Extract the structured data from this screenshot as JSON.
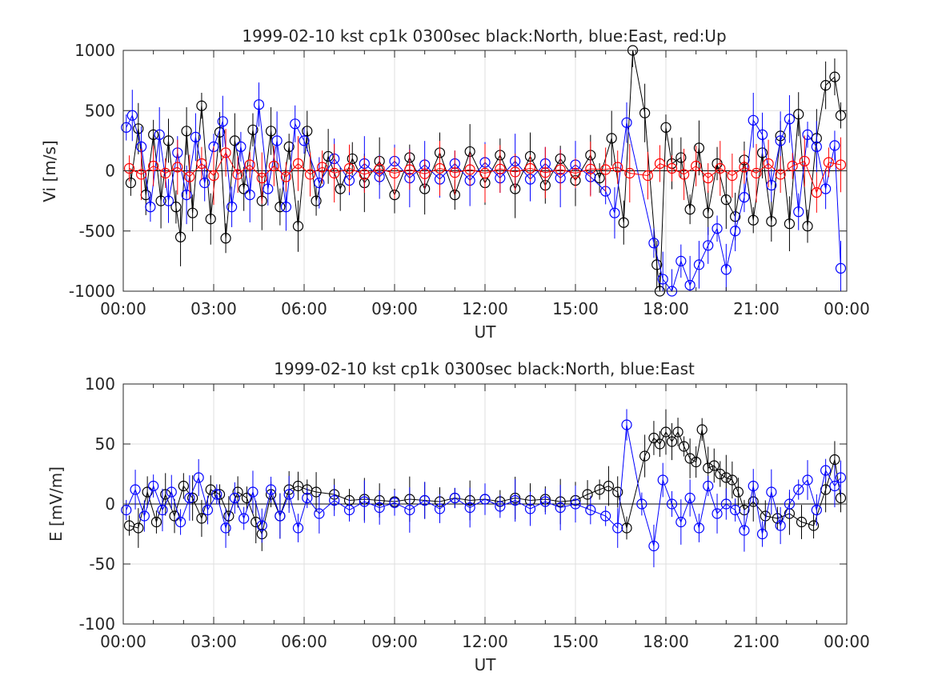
{
  "chart_data": [
    {
      "type": "scatter",
      "title": "1999-02-10 kst cp1k 0300sec black:North, blue:East, red:Up",
      "xlabel": "UT",
      "ylabel": "Vi [m/s]",
      "ylim": [
        -1000,
        1000
      ],
      "xlim_hours": [
        0,
        24
      ],
      "x_ticks": [
        "00:00",
        "03:00",
        "06:00",
        "09:00",
        "12:00",
        "15:00",
        "18:00",
        "21:00",
        "00:00"
      ],
      "y_ticks": [
        "-1000",
        "-500",
        "0",
        "500",
        "1000"
      ],
      "grid": true,
      "marker": "circle with error bar, connected by line",
      "series": [
        {
          "color": "#000000",
          "x_hours": [
            0.25,
            0.5,
            0.75,
            1.0,
            1.25,
            1.5,
            1.75,
            1.9,
            2.1,
            2.3,
            2.6,
            2.9,
            3.2,
            3.4,
            3.7,
            4.0,
            4.3,
            4.6,
            4.9,
            5.2,
            5.5,
            5.8,
            6.1,
            6.4,
            6.8,
            7.2,
            7.6,
            8.0,
            8.5,
            9.0,
            9.5,
            10.0,
            10.5,
            11.0,
            11.5,
            12.0,
            12.5,
            13.0,
            13.5,
            14.0,
            14.5,
            15.0,
            15.5,
            15.8,
            16.2,
            16.6,
            16.9,
            17.3,
            17.7,
            17.8,
            18.0,
            18.2,
            18.5,
            18.8,
            19.1,
            19.4,
            19.7,
            20.0,
            20.3,
            20.6,
            20.9,
            21.2,
            21.5,
            21.8,
            22.1,
            22.4,
            22.7,
            23.0,
            23.3,
            23.6,
            23.8
          ],
          "values": [
            -100,
            350,
            -200,
            300,
            -250,
            250,
            -300,
            -550,
            330,
            -350,
            540,
            -400,
            320,
            -560,
            250,
            -150,
            340,
            -250,
            330,
            -300,
            200,
            -460,
            330,
            -250,
            120,
            -150,
            100,
            -100,
            80,
            -200,
            110,
            -150,
            150,
            -200,
            160,
            -100,
            130,
            -150,
            120,
            -120,
            100,
            -80,
            130,
            -60,
            270,
            -430,
            1000,
            480,
            -780,
            -1000,
            360,
            60,
            110,
            -320,
            190,
            -350,
            60,
            -240,
            -380,
            90,
            -410,
            150,
            -420,
            290,
            -440,
            470,
            -460,
            270,
            710,
            780,
            460
          ]
        },
        {
          "color": "#0000ff",
          "x_hours": [
            0.1,
            0.3,
            0.6,
            0.9,
            1.2,
            1.5,
            1.8,
            2.1,
            2.4,
            2.7,
            3.0,
            3.3,
            3.6,
            3.9,
            4.2,
            4.5,
            4.8,
            5.1,
            5.4,
            5.7,
            6.0,
            6.5,
            7.0,
            7.5,
            8.0,
            8.5,
            9.0,
            9.5,
            10.0,
            10.5,
            11.0,
            11.5,
            12.0,
            12.5,
            13.0,
            13.5,
            14.0,
            14.5,
            15.0,
            15.5,
            16.0,
            16.3,
            16.7,
            17.6,
            17.9,
            18.2,
            18.5,
            18.8,
            19.1,
            19.4,
            19.7,
            20.0,
            20.3,
            20.6,
            20.9,
            21.2,
            21.5,
            21.8,
            22.1,
            22.4,
            22.7,
            23.0,
            23.3,
            23.6,
            23.8
          ],
          "values": [
            360,
            460,
            200,
            -300,
            300,
            -250,
            150,
            -200,
            280,
            -100,
            200,
            410,
            -300,
            200,
            -200,
            550,
            -150,
            250,
            -300,
            390,
            250,
            -100,
            100,
            -80,
            60,
            -50,
            80,
            -60,
            50,
            -70,
            60,
            -80,
            70,
            -60,
            80,
            -70,
            60,
            -60,
            50,
            -50,
            -170,
            -350,
            400,
            -600,
            -900,
            -1000,
            -750,
            -950,
            -780,
            -620,
            -480,
            -820,
            -500,
            -220,
            420,
            300,
            -120,
            250,
            430,
            -340,
            300,
            200,
            -150,
            210,
            -810
          ]
        },
        {
          "color": "#ff0000",
          "x_hours": [
            0.2,
            0.6,
            1.0,
            1.4,
            1.8,
            2.2,
            2.6,
            3.0,
            3.4,
            3.8,
            4.2,
            4.6,
            5.0,
            5.4,
            5.8,
            6.2,
            6.6,
            7.0,
            7.5,
            8.0,
            8.5,
            9.0,
            9.5,
            10.0,
            10.5,
            11.0,
            11.5,
            12.0,
            12.5,
            13.0,
            13.5,
            14.0,
            14.5,
            15.0,
            15.5,
            16.0,
            16.4,
            16.8,
            17.4,
            17.8,
            18.2,
            18.6,
            19.0,
            19.4,
            19.8,
            20.2,
            20.6,
            21.0,
            21.4,
            21.8,
            22.2,
            22.6,
            23.0,
            23.4,
            23.8
          ],
          "values": [
            20,
            -30,
            40,
            -20,
            30,
            -50,
            60,
            -40,
            150,
            -30,
            50,
            -60,
            40,
            -50,
            60,
            -30,
            30,
            -20,
            20,
            -30,
            15,
            -20,
            10,
            -25,
            20,
            -15,
            10,
            -20,
            15,
            -10,
            20,
            -15,
            10,
            -20,
            15,
            10,
            30,
            -20,
            -40,
            60,
            20,
            -30,
            40,
            -60,
            20,
            -40,
            30,
            -20,
            60,
            -30,
            40,
            80,
            -180,
            70,
            50
          ]
        }
      ]
    },
    {
      "type": "scatter",
      "title": "1999-02-10 kst cp1k 0300sec black:North, blue:East",
      "xlabel": "UT",
      "ylabel": "E [mV/m]",
      "ylim": [
        -100,
        100
      ],
      "xlim_hours": [
        0,
        24
      ],
      "x_ticks": [
        "00:00",
        "03:00",
        "06:00",
        "09:00",
        "12:00",
        "15:00",
        "18:00",
        "21:00",
        "00:00"
      ],
      "y_ticks": [
        "-100",
        "-50",
        "0",
        "50",
        "100"
      ],
      "grid": true,
      "marker": "circle with error bar, connected by line",
      "series": [
        {
          "color": "#000000",
          "x_hours": [
            0.2,
            0.5,
            0.8,
            1.1,
            1.4,
            1.7,
            2.0,
            2.3,
            2.6,
            2.9,
            3.2,
            3.5,
            3.8,
            4.1,
            4.4,
            4.6,
            4.9,
            5.2,
            5.5,
            5.8,
            6.1,
            6.4,
            7.0,
            7.5,
            8.0,
            8.5,
            9.0,
            9.5,
            10.0,
            10.5,
            11.0,
            11.5,
            12.0,
            12.5,
            13.0,
            13.5,
            14.0,
            14.5,
            15.0,
            15.4,
            15.8,
            16.1,
            16.4,
            16.7,
            17.3,
            17.6,
            17.8,
            18.0,
            18.2,
            18.4,
            18.6,
            18.8,
            19.0,
            19.2,
            19.4,
            19.6,
            19.8,
            20.0,
            20.2,
            20.4,
            20.6,
            20.9,
            21.3,
            21.7,
            22.1,
            22.5,
            22.9,
            23.3,
            23.6,
            23.8
          ],
          "values": [
            -18,
            -20,
            10,
            -15,
            8,
            -10,
            15,
            5,
            -12,
            12,
            8,
            -10,
            10,
            5,
            -15,
            -25,
            8,
            -10,
            12,
            15,
            12,
            10,
            8,
            3,
            4,
            3,
            2,
            4,
            3,
            2,
            5,
            3,
            4,
            2,
            5,
            3,
            4,
            2,
            3,
            8,
            12,
            15,
            10,
            -20,
            40,
            55,
            50,
            60,
            52,
            60,
            48,
            38,
            35,
            62,
            30,
            32,
            25,
            22,
            20,
            10,
            -5,
            2,
            -10,
            -12,
            -8,
            -15,
            -18,
            12,
            37,
            5
          ]
        },
        {
          "color": "#0000ff",
          "x_hours": [
            0.1,
            0.4,
            0.7,
            1.0,
            1.3,
            1.6,
            1.9,
            2.2,
            2.5,
            2.8,
            3.1,
            3.4,
            3.7,
            4.0,
            4.3,
            4.6,
            4.9,
            5.2,
            5.5,
            5.8,
            6.1,
            6.5,
            7.0,
            7.5,
            8.0,
            8.5,
            9.0,
            9.5,
            10.0,
            10.5,
            11.0,
            11.5,
            12.0,
            12.5,
            13.0,
            13.5,
            14.0,
            14.5,
            15.0,
            15.5,
            16.0,
            16.4,
            16.7,
            17.2,
            17.6,
            17.9,
            18.2,
            18.5,
            18.8,
            19.1,
            19.4,
            19.7,
            20.0,
            20.3,
            20.6,
            20.9,
            21.2,
            21.5,
            21.8,
            22.1,
            22.4,
            22.7,
            23.0,
            23.3,
            23.6,
            23.8
          ],
          "values": [
            -5,
            12,
            -10,
            15,
            -5,
            10,
            -15,
            5,
            22,
            -5,
            8,
            -20,
            5,
            -12,
            10,
            -18,
            12,
            -10,
            8,
            -20,
            5,
            -8,
            3,
            -5,
            2,
            -3,
            1,
            -5,
            3,
            -4,
            5,
            -3,
            4,
            -2,
            3,
            -4,
            2,
            -3,
            0,
            -5,
            -10,
            -20,
            66,
            0,
            -35,
            20,
            0,
            -15,
            5,
            -20,
            15,
            -8,
            0,
            -5,
            -22,
            15,
            -25,
            10,
            -18,
            0,
            12,
            20,
            -5,
            28,
            15,
            22
          ]
        }
      ]
    }
  ]
}
